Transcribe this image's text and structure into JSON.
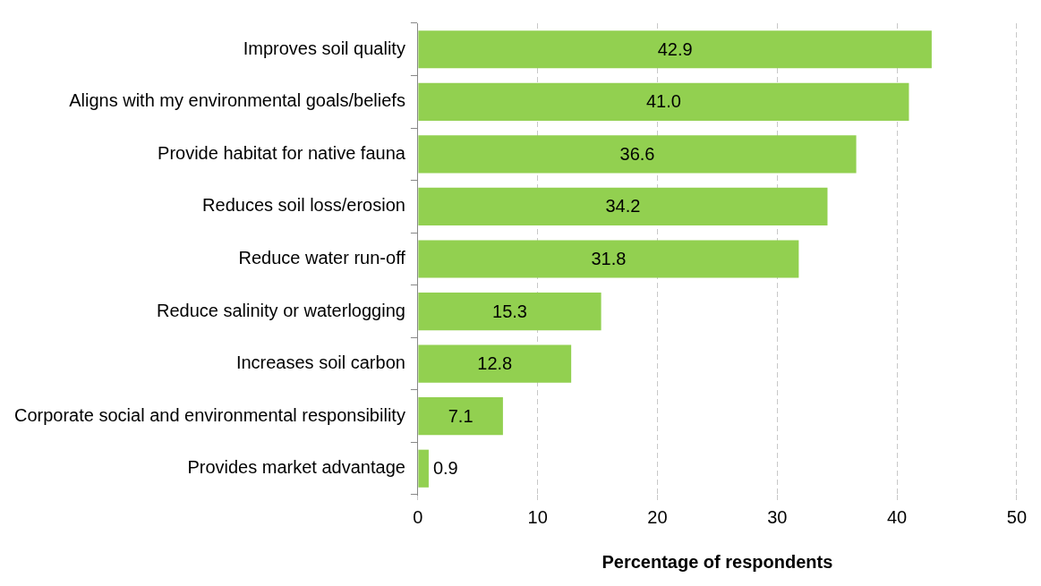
{
  "chart_data": {
    "type": "bar",
    "orientation": "horizontal",
    "xlabel": "Percentage of respondents",
    "categories": [
      "Improves soil quality",
      "Aligns with my environmental goals/beliefs",
      "Provide habitat for native fauna",
      "Reduces soil loss/erosion",
      "Reduce water run-off",
      "Reduce salinity or waterlogging",
      "Increases soil carbon",
      "Corporate social and environmental responsibility",
      "Provides market advantage"
    ],
    "values": [
      42.9,
      41.0,
      36.6,
      34.2,
      31.8,
      15.3,
      12.8,
      7.1,
      0.9
    ],
    "value_labels": [
      "42.9",
      "41.0",
      "36.6",
      "34.2",
      "31.8",
      "15.3",
      "12.8",
      "7.1",
      "0.9"
    ],
    "color": "#92d050",
    "xlim": [
      0,
      50
    ],
    "xticks": [
      0,
      10,
      20,
      30,
      40,
      50
    ],
    "grid": "x",
    "legend": false
  }
}
